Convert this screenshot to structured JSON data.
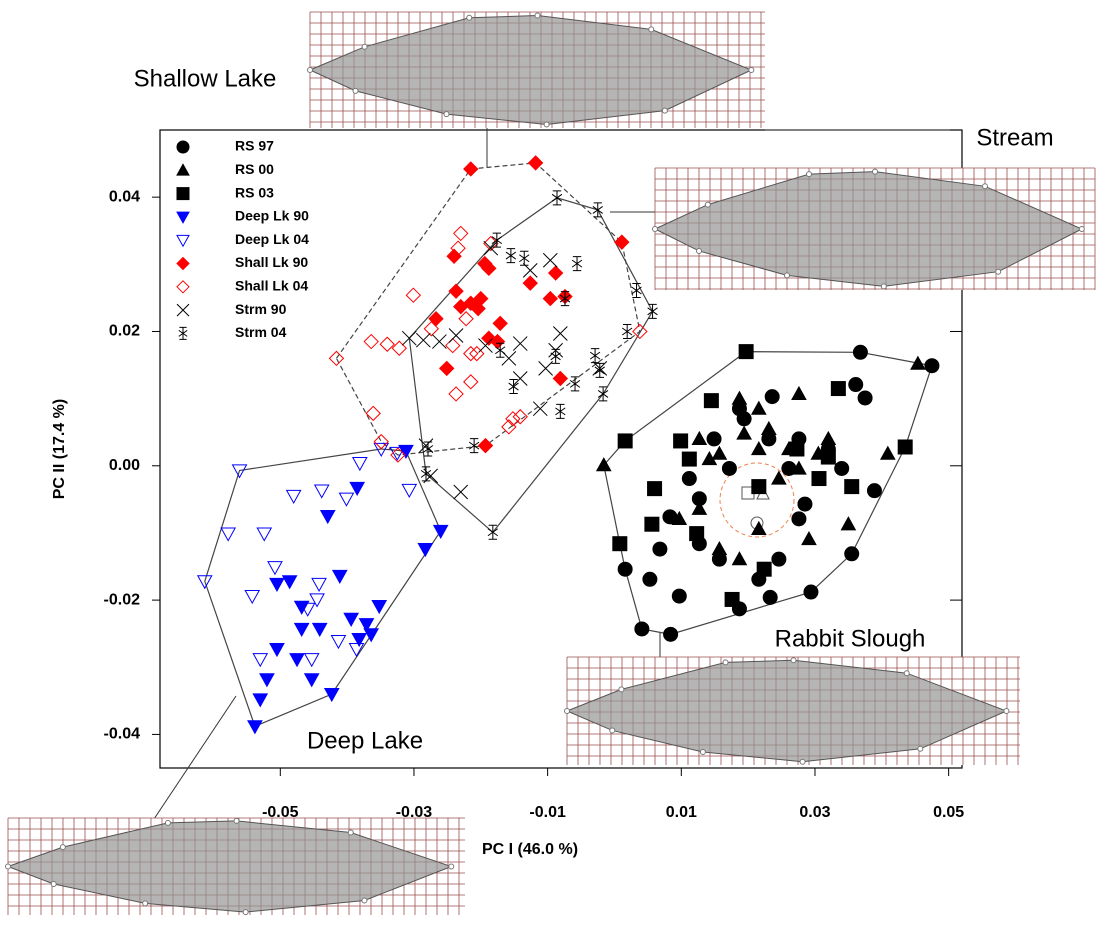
{
  "chart_data": {
    "type": "scatter",
    "xlabel": "PC I (46.0 %)",
    "ylabel": "PC II (17.4 %)",
    "xlim": [
      -0.068,
      0.052
    ],
    "ylim": [
      -0.045,
      0.05
    ],
    "xticks": [
      -0.05,
      -0.03,
      -0.01,
      0.01,
      0.03,
      0.05
    ],
    "yticks": [
      -0.04,
      -0.02,
      {
        "value": 0,
        "label": "0.00"
      },
      0.02,
      0.04
    ],
    "legend": "upper left",
    "annotations": [
      "Shallow Lake",
      "Stream",
      "Rabbit Slough",
      "Deep Lake"
    ],
    "series": [
      {
        "name": "RS 97",
        "color": "#000000",
        "marker": "circle",
        "filled": true,
        "x": [
          0.0475,
          0.0368,
          0.0361,
          0.0375,
          0.0389,
          0.0355,
          0.0294,
          0.0233,
          0.0187,
          0.0084,
          0.0041,
          0.0097,
          0.0053,
          0.0016,
          0.0068,
          0.0083,
          0.0127,
          0.0187,
          0.0236,
          0.0231,
          0.0276,
          0.0285,
          0.034,
          0.0246,
          0.0216,
          0.0157,
          0.0127,
          0.032,
          0.0194,
          0.0172,
          0.0112,
          0.0149,
          0.0261,
          0.0276
        ],
        "y": [
          0.0149,
          0.0169,
          0.0121,
          0.0101,
          -0.0037,
          -0.0131,
          -0.0188,
          -0.0196,
          -0.0213,
          -0.0251,
          -0.0243,
          -0.0194,
          -0.0169,
          -0.0154,
          -0.0124,
          -0.0076,
          -0.0049,
          0.0085,
          0.0103,
          0.004,
          -0.0079,
          -0.0057,
          -0.0004,
          -0.0139,
          -0.0169,
          -0.0139,
          -0.0116,
          0.0025,
          0.007,
          -0.0004,
          -0.0019,
          0.004,
          -0.0004,
          0.004
        ]
      },
      {
        "name": "RS 00",
        "color": "#000000",
        "marker": "triangle",
        "filled": true,
        "x": [
          0.0454,
          0.0276,
          0.0187,
          0.0216,
          0.0231,
          0.0127,
          0.0157,
          0.0216,
          0.0261,
          0.0305,
          0.032,
          0.0409,
          0.0097,
          0.0157,
          0.0187,
          0.0127,
          0.035,
          0.0142,
          0.0194,
          0.0276,
          0.0291,
          0.0216,
          0.0246,
          -0.0016
        ],
        "y": [
          0.0152,
          0.0107,
          0.01,
          0.0085,
          0.0055,
          0.004,
          0.0018,
          0.0025,
          0.0025,
          0.0018,
          0.004,
          0.0018,
          -0.0079,
          -0.0124,
          -0.0139,
          -0.0064,
          -0.0087,
          0.001,
          0.0048,
          -0.0004,
          -0.0109,
          -0.0094,
          -0.0019,
          0.0001
        ]
      },
      {
        "name": "RS 03",
        "color": "#000000",
        "marker": "square",
        "filled": true,
        "x": [
          0.0197,
          0.0145,
          0.0099,
          0.0016,
          0.006,
          0.0008,
          0.0056,
          0.0123,
          0.0216,
          0.032,
          0.0355,
          0.0435,
          0.0335,
          0.0306,
          0.0176,
          0.0224,
          0.0112,
          0.0273
        ],
        "y": [
          0.017,
          0.0097,
          0.0037,
          0.0037,
          -0.0034,
          -0.0116,
          -0.0087,
          -0.0101,
          -0.0031,
          0.0013,
          -0.0031,
          0.0028,
          0.0115,
          -0.0019,
          -0.0199,
          -0.0154,
          0.001,
          0.0025
        ]
      },
      {
        "name": "Deep Lk 90",
        "color": "#0000ff",
        "marker": "down-triangle",
        "filled": true,
        "x": [
          -0.0312,
          -0.026,
          -0.0283,
          -0.0385,
          -0.0429,
          -0.0411,
          -0.0505,
          -0.0468,
          -0.0468,
          -0.0505,
          -0.0475,
          -0.0453,
          -0.0423,
          -0.052,
          -0.053,
          -0.0538,
          -0.0394,
          -0.0382,
          -0.0371,
          -0.0364,
          -0.0352,
          -0.0441,
          -0.0486
        ],
        "y": [
          0.0022,
          -0.0097,
          -0.0124,
          -0.0033,
          -0.0075,
          -0.0164,
          -0.0176,
          -0.021,
          -0.0243,
          -0.0273,
          -0.0288,
          -0.0318,
          -0.034,
          -0.0318,
          -0.0348,
          -0.0388,
          -0.0228,
          -0.0258,
          -0.0236,
          -0.0251,
          -0.0209,
          -0.0243,
          -0.0172
        ]
      },
      {
        "name": "Deep Lk 04",
        "color": "#0000ff",
        "marker": "down-triangle",
        "filled": false,
        "x": [
          -0.0561,
          -0.0381,
          -0.0307,
          -0.0325,
          -0.0438,
          -0.0401,
          -0.0578,
          -0.0524,
          -0.0613,
          -0.0542,
          -0.0508,
          -0.0442,
          -0.0445,
          -0.0459,
          -0.0413,
          -0.0386,
          -0.053,
          -0.0453,
          -0.048,
          -0.0349
        ],
        "y": [
          -0.0007,
          0.0004,
          -0.0036,
          0.0019,
          -0.0037,
          -0.0049,
          -0.0101,
          -0.0101,
          -0.0172,
          -0.0194,
          -0.0151,
          -0.0176,
          -0.0199,
          -0.0213,
          -0.0261,
          -0.0273,
          -0.0288,
          -0.0288,
          -0.0045,
          0.0025
        ]
      },
      {
        "name": "Shall Lk 90",
        "color": "#ff0000",
        "marker": "diamond",
        "filled": true,
        "x": [
          -0.0118,
          -0.0215,
          0.0011,
          -0.024,
          -0.0194,
          -0.0188,
          -0.02,
          -0.0237,
          -0.0215,
          -0.023,
          -0.0204,
          -0.0126,
          -0.0096,
          -0.0074,
          -0.0088,
          -0.0267,
          -0.0188,
          -0.0175,
          -0.0251,
          -0.0081,
          -0.0193,
          -0.0171
        ],
        "y": [
          0.0451,
          0.0442,
          0.0333,
          0.0312,
          0.0301,
          0.0294,
          0.0249,
          0.026,
          0.0242,
          0.0237,
          0.0234,
          0.0272,
          0.0249,
          0.0252,
          0.0287,
          0.0219,
          0.019,
          0.0185,
          0.0145,
          0.013,
          0.003,
          0.0212
        ]
      },
      {
        "name": "Shall Lk 04",
        "color": "#ff0000",
        "marker": "diamond",
        "filled": false,
        "x": [
          -0.023,
          -0.0234,
          -0.0301,
          -0.0416,
          -0.0364,
          -0.034,
          -0.0322,
          -0.0274,
          -0.0222,
          -0.0242,
          -0.0237,
          -0.0215,
          -0.0215,
          -0.0152,
          -0.0141,
          -0.0158,
          0.0038,
          -0.0361,
          -0.0349,
          -0.0324,
          -0.0185,
          -0.0206
        ],
        "y": [
          0.0346,
          0.0324,
          0.0254,
          0.016,
          0.0185,
          0.0181,
          0.0175,
          0.0204,
          0.0219,
          0.0179,
          0.0107,
          0.0167,
          0.0125,
          0.007,
          0.0073,
          0.0058,
          0.02,
          0.0078,
          0.0036,
          0.0016,
          0.0331,
          0.0167
        ]
      },
      {
        "name": "Strm 90",
        "color": "#000000",
        "marker": "x",
        "filled": false,
        "x": [
          -0.0286,
          -0.0262,
          -0.0307,
          -0.0237,
          -0.0096,
          -0.0126,
          -0.0081,
          -0.0103,
          -0.0111,
          -0.0141,
          -0.0158,
          -0.0022,
          -0.0282,
          -0.0275,
          -0.023,
          -0.0193,
          -0.0141,
          -0.0088,
          -0.0185
        ],
        "y": [
          0.0187,
          0.0185,
          0.019,
          0.0194,
          0.0306,
          0.0291,
          0.0197,
          0.0145,
          0.0085,
          0.013,
          0.016,
          0.0145,
          0.003,
          -0.0015,
          -0.0039,
          0.0179,
          0.0182,
          0.0172,
          0.0324
        ]
      },
      {
        "name": "Strm 04",
        "color": "#000000",
        "marker": "asterisk",
        "filled": false,
        "x": [
          -0.0086,
          -0.0025,
          -0.0176,
          -0.0155,
          -0.0056,
          -0.0135,
          -0.0074,
          0.0033,
          0.0057,
          -0.0171,
          -0.0151,
          -0.0088,
          -0.0081,
          -0.0029,
          -0.0017,
          -0.0022,
          -0.021,
          -0.0279,
          -0.0182,
          -0.0282,
          -0.0059,
          0.0019
        ],
        "y": [
          0.0399,
          0.0381,
          0.0336,
          0.0313,
          0.0301,
          0.0309,
          0.0249,
          0.0261,
          0.023,
          0.0172,
          0.0118,
          0.0163,
          0.0081,
          0.0164,
          0.0107,
          0.0142,
          0.003,
          0.0025,
          -0.0099,
          -0.0012,
          0.0122,
          0.02
        ]
      }
    ]
  }
}
